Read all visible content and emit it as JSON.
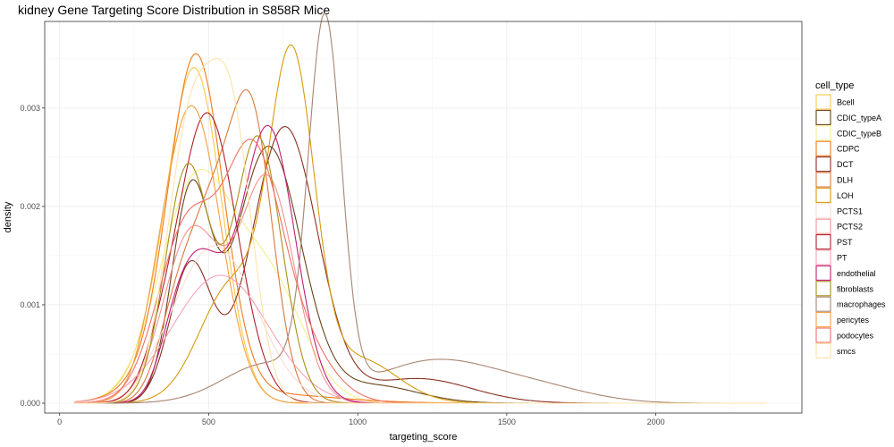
{
  "chart_data": {
    "type": "line",
    "title": "kidney Gene Targeting Score Distribution in S858R Mice",
    "xlabel": "targeting_score",
    "ylabel": "density",
    "xlim": [
      -50,
      2490
    ],
    "ylim": [
      -0.0001,
      0.00388
    ],
    "x_ticks": [
      0,
      500,
      1000,
      1500,
      2000
    ],
    "y_ticks": [
      0.0,
      0.001,
      0.002,
      0.003
    ],
    "x_tick_labels": [
      "0",
      "500",
      "1000",
      "1500",
      "2000"
    ],
    "y_tick_labels": [
      "0.000",
      "0.001",
      "0.002",
      "0.003"
    ],
    "grid": true,
    "legend_title": "cell_type",
    "legend_position": "right",
    "series": [
      {
        "name": "Bcell",
        "color": "#F7C846",
        "components": [
          [
            455,
            90,
            0.00318
          ],
          [
            360,
            120,
            0.0003
          ],
          [
            300,
            70,
            0.0001
          ]
        ]
      },
      {
        "name": "CDIC_typeA",
        "color": "#6B4419",
        "components": [
          [
            440,
            65,
            0.0021
          ],
          [
            700,
            110,
            0.0026
          ],
          [
            1050,
            150,
            0.00018
          ]
        ]
      },
      {
        "name": "CDIC_typeB",
        "color": "#F3F08A",
        "components": [
          [
            455,
            120,
            0.0022
          ],
          [
            700,
            120,
            0.0012
          ]
        ]
      },
      {
        "name": "CDPC",
        "color": "#EE7A1B",
        "components": [
          [
            460,
            90,
            0.00325
          ],
          [
            370,
            120,
            0.0003
          ],
          [
            650,
            250,
            0.0001
          ]
        ]
      },
      {
        "name": "DCT",
        "color": "#8B2F22",
        "components": [
          [
            440,
            70,
            0.0014
          ],
          [
            755,
            110,
            0.0028
          ],
          [
            1200,
            180,
            0.00025
          ]
        ]
      },
      {
        "name": "DLH",
        "color": "#D9793B",
        "components": [
          [
            510,
            90,
            0.0019
          ],
          [
            650,
            70,
            0.0025
          ],
          [
            380,
            60,
            0.0005
          ]
        ]
      },
      {
        "name": "LOH",
        "color": "#D69B0C",
        "components": [
          [
            780,
            75,
            0.0033
          ],
          [
            580,
            110,
            0.0012
          ],
          [
            1000,
            130,
            0.00045
          ]
        ]
      },
      {
        "name": "PCTS1",
        "color": "#F9DCD8",
        "components": [
          [
            520,
            140,
            0.0016
          ]
        ]
      },
      {
        "name": "PCTS2",
        "color": "#F19393",
        "components": [
          [
            430,
            90,
            0.0014
          ],
          [
            700,
            90,
            0.0022
          ],
          [
            520,
            100,
            0.0005
          ]
        ]
      },
      {
        "name": "PST",
        "color": "#B11E2C",
        "components": [
          [
            495,
            100,
            0.00295
          ],
          [
            330,
            55,
            0.0002
          ]
        ]
      },
      {
        "name": "PT",
        "color": "#F5A3B5",
        "components": [
          [
            540,
            160,
            0.0013
          ]
        ]
      },
      {
        "name": "endothelial",
        "color": "#C41D73",
        "components": [
          [
            470,
            80,
            0.0014
          ],
          [
            700,
            90,
            0.0028
          ],
          [
            380,
            50,
            0.0003
          ]
        ]
      },
      {
        "name": "fibroblasts",
        "color": "#A98F18",
        "components": [
          [
            430,
            75,
            0.0024
          ],
          [
            665,
            80,
            0.0027
          ]
        ]
      },
      {
        "name": "macrophages",
        "color": "#A88470",
        "components": [
          [
            890,
            55,
            0.0037
          ],
          [
            1250,
            200,
            0.00042
          ],
          [
            1600,
            180,
            0.00015
          ],
          [
            700,
            150,
            0.0004
          ]
        ]
      },
      {
        "name": "pericytes",
        "color": "#F3A044",
        "components": [
          [
            445,
            95,
            0.003
          ],
          [
            330,
            55,
            0.0002
          ]
        ]
      },
      {
        "name": "podocytes",
        "color": "#F07064",
        "components": [
          [
            430,
            100,
            0.0018
          ],
          [
            640,
            90,
            0.002
          ],
          [
            760,
            120,
            0.0008
          ]
        ]
      },
      {
        "name": "smcs",
        "color": "#FCE3A9",
        "components": [
          [
            440,
            80,
            0.0028
          ],
          [
            580,
            70,
            0.0026
          ]
        ]
      }
    ]
  }
}
